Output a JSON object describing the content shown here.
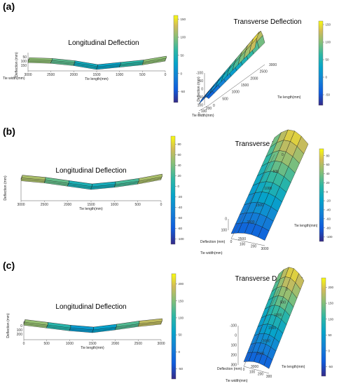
{
  "panels": [
    {
      "label": "(a)"
    },
    {
      "label": "(b)"
    },
    {
      "label": "(c)"
    }
  ],
  "chart_data": [
    {
      "panel": "(a)",
      "type": "area",
      "title": "Longitudinal Deflection",
      "xlabel": "Tie length(mm)",
      "ylabel": "Deflection (mm)",
      "zlabel": "Tie width(mm)",
      "x_ticks": [
        "3000",
        "2500",
        "2000",
        "1500",
        "1000",
        "500",
        "0"
      ],
      "y_ticks": [
        "150",
        "100",
        "50"
      ],
      "z_ticks": [
        "0",
        "200"
      ],
      "colorbar": {
        "ticks": [
          "150",
          "100",
          "50",
          "0",
          "-50"
        ],
        "range": [
          -80,
          160
        ]
      },
      "series": [
        {
          "x": [
            3000,
            2500,
            2000,
            1500,
            1000,
            500,
            0
          ],
          "values": [
            100,
            90,
            60,
            10,
            40,
            70,
            120
          ]
        }
      ]
    },
    {
      "panel": "(a)",
      "type": "area",
      "title": "Transverse Deflection",
      "xlabel": "Tie width(mm)",
      "ylabel": "Tie length(mm)",
      "zlabel": "Deflection (mm)",
      "x_ticks": [
        "200",
        "100",
        "0"
      ],
      "y_ticks": [
        "3000",
        "2500",
        "2000",
        "1500",
        "1000",
        "500",
        "0"
      ],
      "z_ticks": [
        "100",
        "50",
        "0",
        "-50",
        "-100"
      ],
      "colorbar": {
        "ticks": [
          "150",
          "100",
          "50",
          "0",
          "-50"
        ],
        "range": [
          -80,
          160
        ]
      }
    },
    {
      "panel": "(b)",
      "type": "area",
      "title": "Longitudinal Deflection",
      "xlabel": "Tie length(mm)",
      "ylabel": "Deflection (mm)",
      "x_ticks": [
        "3000",
        "2500",
        "2000",
        "1500",
        "1000",
        "500",
        "0"
      ],
      "colorbar": {
        "ticks": [
          "80",
          "60",
          "40",
          "20",
          "0",
          "-20",
          "-40",
          "-60",
          "-80",
          "-100"
        ],
        "range": [
          -110,
          95
        ]
      },
      "series": [
        {
          "x": [
            3000,
            2500,
            2000,
            1500,
            1000,
            500,
            0
          ],
          "values": [
            60,
            40,
            10,
            -20,
            0,
            30,
            70
          ]
        }
      ]
    },
    {
      "panel": "(b)",
      "type": "area",
      "title": "Transverse Deflection",
      "xlabel": "Tie width(mm)",
      "ylabel": "Tie length(mm)",
      "zlabel": "Deflection (mm)",
      "x_ticks": [
        "0",
        "100",
        "200",
        "3000"
      ],
      "y_ticks": [
        "0",
        "500",
        "1000",
        "1500",
        "2000",
        "2500"
      ],
      "z_ticks": [
        "100",
        "0"
      ],
      "colorbar": {
        "ticks": [
          "80",
          "60",
          "40",
          "20",
          "0",
          "-20",
          "-40",
          "-60",
          "-80",
          "-100"
        ],
        "range": [
          -110,
          95
        ]
      }
    },
    {
      "panel": "(c)",
      "type": "area",
      "title": "Longitudinal Deflection",
      "xlabel": "Tie length(mm)",
      "ylabel": "Deflection (mm)",
      "x_ticks": [
        "0",
        "500",
        "1000",
        "1500",
        "2000",
        "2500",
        "3000"
      ],
      "y_ticks": [
        "200",
        "100",
        "0"
      ],
      "colorbar": {
        "ticks": [
          "200",
          "150",
          "100",
          "50",
          "0",
          "-50"
        ],
        "range": [
          -80,
          230
        ]
      },
      "series": [
        {
          "x": [
            0,
            500,
            1000,
            1500,
            2000,
            2500,
            3000
          ],
          "values": [
            180,
            120,
            60,
            20,
            80,
            150,
            200
          ]
        }
      ]
    },
    {
      "panel": "(c)",
      "type": "area",
      "title": "Transverse Deflection",
      "xlabel": "Tie width(mm)",
      "ylabel": "Tie length(mm)",
      "zlabel": "Deflection (mm)",
      "x_ticks": [
        "0",
        "100",
        "200",
        "300"
      ],
      "y_ticks": [
        "0",
        "500",
        "1000",
        "1500",
        "2000",
        "2500",
        "3000"
      ],
      "z_ticks": [
        "300",
        "200",
        "100",
        "0",
        "-100"
      ],
      "colorbar": {
        "ticks": [
          "200",
          "150",
          "100",
          "50",
          "0",
          "-50"
        ],
        "range": [
          -80,
          230
        ]
      }
    }
  ]
}
